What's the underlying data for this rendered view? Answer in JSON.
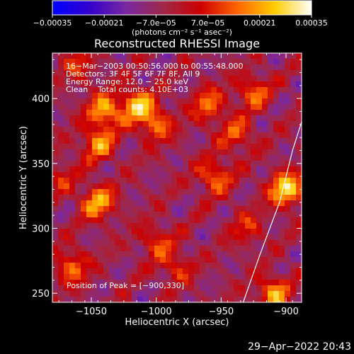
{
  "chart_data": {
    "type": "heatmap",
    "title": "Reconstructed RHESSI Image",
    "xlabel": "Heliocentric X (arcsec)",
    "ylabel": "Heliocentric Y (arcsec)",
    "xlim": [
      -1080,
      -888
    ],
    "ylim": [
      243,
      435
    ],
    "x_ticks": [
      -1050,
      -1000,
      -950,
      -900
    ],
    "x_tick_labels": [
      "−1050",
      "−1000",
      "−950",
      "−900"
    ],
    "y_ticks": [
      250,
      300,
      350,
      400
    ],
    "y_tick_labels": [
      "250",
      "300",
      "350",
      "400"
    ],
    "colorbar": {
      "range": [
        -0.00035,
        0.00035
      ],
      "ticks": [
        -0.00035,
        -0.00021,
        -7e-05,
        7e-05,
        0.00021,
        0.00035
      ],
      "tick_labels": [
        "−0.00035",
        "−0.00021",
        "−7.0e−05",
        "7.0e−05",
        "0.00021",
        "0.00035"
      ],
      "unit_label": "(photons cm⁻² s⁻¹ asec⁻²)",
      "colormap": [
        "#0000ff",
        "#3300cc",
        "#7a28a0",
        "#a02848",
        "#cc0000",
        "#ff6600",
        "#ffcc00",
        "#ffffff"
      ]
    },
    "annotations": [
      "16−Mar−2003 00:50:56.000 to 00:55:48.000",
      "Detectors: 3F 4F 5F 6F 7F 8F, All 9",
      "Energy Range: 12.0 − 25.0 keV",
      "Clean    Total counts: 4.10E+03"
    ],
    "peak_label": "Position of Peak = [−900,330]",
    "peak_position": [
      -900,
      330
    ],
    "limb_line": [
      [
        -933,
        243
      ],
      [
        -920,
        280
      ],
      [
        -905,
        320
      ],
      [
        -895,
        360
      ],
      [
        -888,
        382
      ]
    ],
    "hotspots": [
      {
        "x": -1040,
        "y": 390,
        "value": 0.00028
      },
      {
        "x": -1045,
        "y": 365,
        "value": 0.00024
      },
      {
        "x": -1015,
        "y": 395,
        "value": 0.0003
      },
      {
        "x": -1000,
        "y": 380,
        "value": 0.00022
      },
      {
        "x": -960,
        "y": 395,
        "value": 0.00021
      },
      {
        "x": -938,
        "y": 372,
        "value": 0.00018
      },
      {
        "x": -925,
        "y": 405,
        "value": 0.0002
      },
      {
        "x": -955,
        "y": 340,
        "value": 0.00022
      },
      {
        "x": -1045,
        "y": 320,
        "value": 0.00028
      },
      {
        "x": -1065,
        "y": 270,
        "value": 0.00022
      },
      {
        "x": -1000,
        "y": 290,
        "value": 0.00016
      },
      {
        "x": -985,
        "y": 270,
        "value": 0.00015
      },
      {
        "x": -930,
        "y": 300,
        "value": 0.00014
      },
      {
        "x": -900,
        "y": 330,
        "value": 0.00035
      },
      {
        "x": -910,
        "y": 250,
        "value": 0.00026
      },
      {
        "x": -1075,
        "y": 340,
        "value": 0.00012
      },
      {
        "x": -1060,
        "y": 425,
        "value": 0.00014
      }
    ]
  },
  "footer_timestamp": "29−Apr−2022 20:43"
}
